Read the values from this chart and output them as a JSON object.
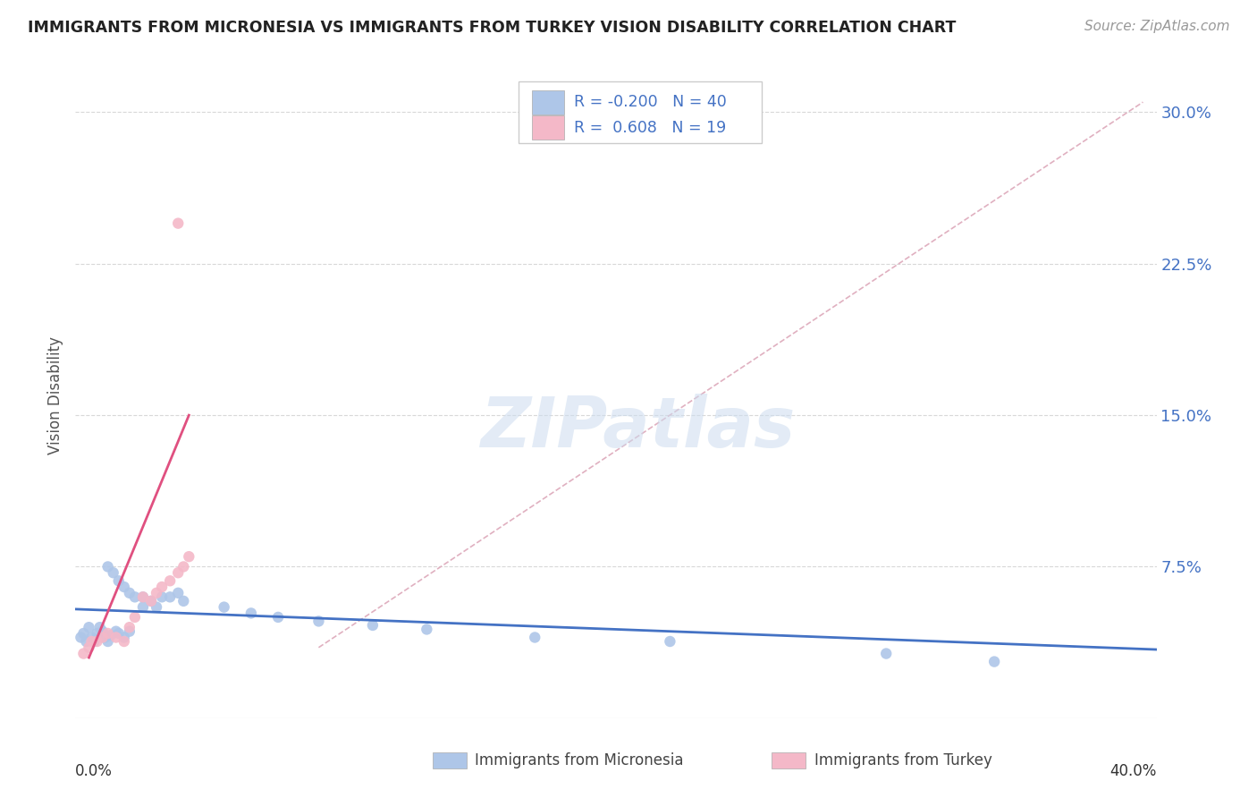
{
  "title": "IMMIGRANTS FROM MICRONESIA VS IMMIGRANTS FROM TURKEY VISION DISABILITY CORRELATION CHART",
  "source": "Source: ZipAtlas.com",
  "ylabel": "Vision Disability",
  "xlim": [
    0.0,
    0.4
  ],
  "ylim": [
    0.0,
    0.32
  ],
  "micronesia_color": "#aec6e8",
  "turkey_color": "#f4b8c8",
  "micronesia_line_color": "#4472c4",
  "turkey_line_color": "#e05080",
  "diagonal_line_color": "#d0d0d0",
  "grid_color": "#d8d8d8",
  "R_micronesia": -0.2,
  "N_micronesia": 40,
  "R_turkey": 0.608,
  "N_turkey": 19,
  "legend_label_micronesia": "Immigrants from Micronesia",
  "legend_label_turkey": "Immigrants from Turkey",
  "watermark": "ZIPatlas",
  "background_color": "#ffffff",
  "ytick_vals": [
    0.075,
    0.15,
    0.225,
    0.3
  ],
  "ytick_labels": [
    "7.5%",
    "15.0%",
    "22.5%",
    "30.0%"
  ]
}
